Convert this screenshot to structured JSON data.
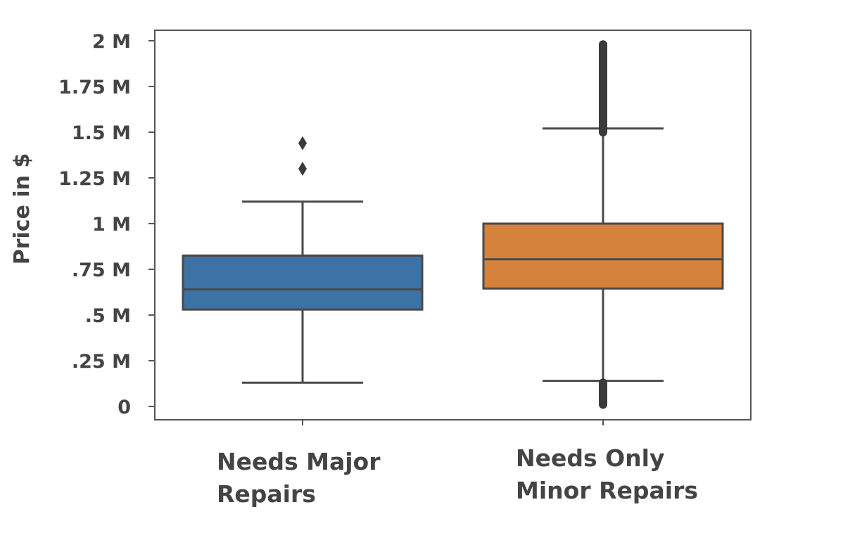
{
  "chart_data": {
    "type": "box",
    "title": "",
    "xlabel": "",
    "ylabel": "Price in $",
    "ylim": [
      0,
      2000000
    ],
    "y_ticks": [
      {
        "value": 0,
        "label": "0"
      },
      {
        "value": 250000,
        "label": ".25 M"
      },
      {
        "value": 500000,
        "label": ".5 M"
      },
      {
        "value": 750000,
        "label": ".75 M"
      },
      {
        "value": 1000000,
        "label": "1 M"
      },
      {
        "value": 1250000,
        "label": "1.25 M"
      },
      {
        "value": 1500000,
        "label": "1.5 M"
      },
      {
        "value": 1750000,
        "label": "1.75 M"
      },
      {
        "value": 2000000,
        "label": "2 M"
      }
    ],
    "categories": [
      {
        "label_lines": [
          "Needs Major",
          "Repairs"
        ],
        "color": "#3d72a4",
        "whisker_low": 130000,
        "q1": 530000,
        "median": 640000,
        "q3": 825000,
        "whisker_high": 1120000,
        "outliers": [
          1300000,
          1440000
        ]
      },
      {
        "label_lines": [
          "Needs Only",
          "Minor Repairs"
        ],
        "color": "#d4823c",
        "whisker_low": 140000,
        "q1": 645000,
        "median": 805000,
        "q3": 1000000,
        "whisker_high": 1520000,
        "outliers_dense_ranges": [
          [
            10000,
            130000
          ],
          [
            1500000,
            1980000
          ]
        ]
      }
    ],
    "grid": false,
    "legend": "none"
  }
}
